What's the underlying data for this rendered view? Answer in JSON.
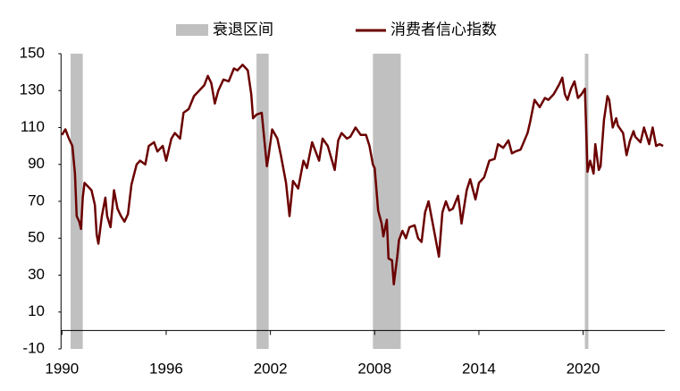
{
  "chart_data": {
    "type": "line",
    "legend": {
      "recession": "衰退区间"
    },
    "recession_color": "#c0c0c0",
    "recessions": [
      [
        1990.5,
        1991.2
      ],
      [
        2001.2,
        2001.9
      ],
      [
        2007.9,
        2009.5
      ],
      [
        2020.1,
        2020.3
      ]
    ],
    "series": [
      {
        "name": "消费者信心指数",
        "color": "#6b0000",
        "x": [
          1990.0,
          1990.2,
          1990.4,
          1990.6,
          1990.75,
          1990.85,
          1991.0,
          1991.1,
          1991.2,
          1991.3,
          1991.5,
          1991.7,
          1991.9,
          1992.0,
          1992.1,
          1992.3,
          1992.5,
          1992.6,
          1992.8,
          1993.0,
          1993.2,
          1993.4,
          1993.6,
          1993.8,
          1994.0,
          1994.3,
          1994.5,
          1994.8,
          1995.0,
          1995.3,
          1995.5,
          1995.8,
          1996.0,
          1996.3,
          1996.5,
          1996.8,
          1997.0,
          1997.3,
          1997.6,
          1997.9,
          1998.2,
          1998.4,
          1998.6,
          1998.8,
          1999.0,
          1999.3,
          1999.6,
          1999.9,
          2000.1,
          2000.4,
          2000.7,
          2000.9,
          2001.0,
          2001.2,
          2001.5,
          2001.8,
          2001.9,
          2002.1,
          2002.4,
          2002.6,
          2002.9,
          2003.1,
          2003.3,
          2003.6,
          2003.9,
          2004.1,
          2004.4,
          2004.8,
          2005.0,
          2005.3,
          2005.7,
          2005.9,
          2006.1,
          2006.4,
          2006.6,
          2006.9,
          2007.2,
          2007.5,
          2007.7,
          2007.9,
          2008.0,
          2008.2,
          2008.4,
          2008.5,
          2008.7,
          2008.8,
          2009.0,
          2009.1,
          2009.3,
          2009.4,
          2009.6,
          2009.8,
          2010.0,
          2010.3,
          2010.5,
          2010.7,
          2010.9,
          2011.1,
          2011.3,
          2011.6,
          2011.7,
          2011.9,
          2012.1,
          2012.3,
          2012.5,
          2012.8,
          2012.9,
          2013.0,
          2013.3,
          2013.5,
          2013.8,
          2014.0,
          2014.3,
          2014.6,
          2014.9,
          2015.1,
          2015.4,
          2015.7,
          2015.9,
          2016.1,
          2016.4,
          2016.8,
          2016.95,
          2017.2,
          2017.5,
          2017.8,
          2018.0,
          2018.3,
          2018.6,
          2018.8,
          2018.95,
          2019.1,
          2019.3,
          2019.5,
          2019.7,
          2019.9,
          2020.1,
          2020.25,
          2020.4,
          2020.6,
          2020.7,
          2020.9,
          2021.0,
          2021.2,
          2021.4,
          2021.5,
          2021.7,
          2021.9,
          2022.0,
          2022.3,
          2022.5,
          2022.7,
          2022.9,
          2023.0,
          2023.3,
          2023.5,
          2023.8,
          2024.0,
          2024.2,
          2024.4,
          2024.6
        ],
        "values": [
          106,
          109,
          104,
          100,
          85,
          62,
          59,
          55,
          72,
          80,
          78,
          76,
          68,
          52,
          47,
          62,
          72,
          62,
          56,
          76,
          66,
          62,
          59,
          63,
          79,
          90,
          92,
          90,
          100,
          102,
          97,
          100,
          92,
          104,
          107,
          104,
          118,
          120,
          127,
          130,
          133,
          138,
          134,
          123,
          130,
          136,
          135,
          142,
          141,
          144,
          141,
          128,
          115,
          117,
          118,
          89,
          95,
          109,
          104,
          95,
          80,
          62,
          81,
          77,
          92,
          88,
          102,
          92,
          104,
          100,
          87,
          103,
          107,
          104,
          105,
          110,
          106,
          106,
          100,
          90,
          88,
          65,
          58,
          51,
          60,
          39,
          38,
          25,
          40,
          49,
          54,
          50,
          56,
          57,
          50,
          48,
          64,
          70,
          60,
          45,
          40,
          64,
          70,
          65,
          66,
          73,
          66,
          58,
          76,
          82,
          71,
          80,
          83,
          92,
          93,
          101,
          99,
          103,
          96,
          97,
          98,
          107,
          113,
          125,
          121,
          126,
          125,
          128,
          133,
          137,
          128,
          125,
          131,
          135,
          126,
          128,
          131,
          86,
          92,
          85,
          101,
          87,
          89,
          114,
          127,
          125,
          110,
          115,
          111,
          107,
          95,
          103,
          108,
          105,
          102,
          110,
          101,
          110,
          100,
          101,
          100
        ]
      }
    ],
    "xlim": [
      1990,
      2024.7
    ],
    "xticks": [
      1990,
      1996,
      2002,
      2008,
      2014,
      2020
    ],
    "ylim": [
      -10,
      150
    ],
    "yticks": [
      -10,
      10,
      30,
      50,
      70,
      90,
      110,
      130,
      150
    ]
  }
}
